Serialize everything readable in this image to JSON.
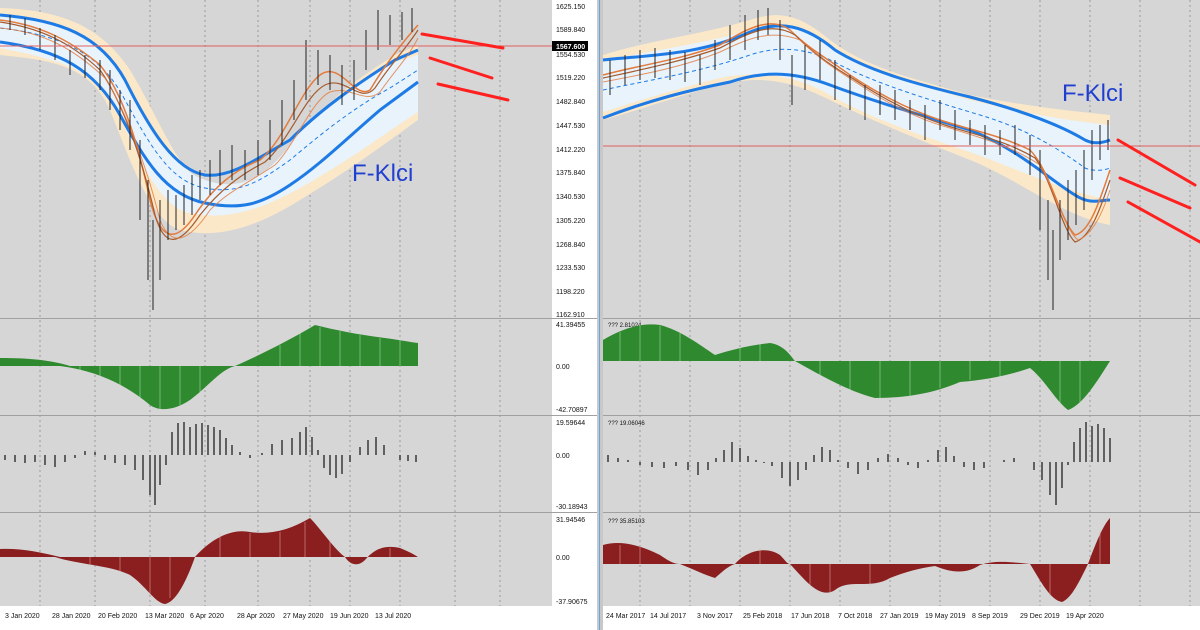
{
  "colors": {
    "background": "#d4d4d4",
    "price_panel": "#ffffff",
    "band_outer": "#fde7c7",
    "band_inner": "#e6f2ff",
    "blue_line": "#1e7be6",
    "ma_orange": "#e27b3d",
    "ma_brown": "#a75b2c",
    "red_arrow": "#ff2b2b",
    "green_hist": "#2f8a2f",
    "black_hist": "#111111",
    "red_hist": "#8b1f1f"
  },
  "left_chart": {
    "symbol_label": "F-Klci",
    "price_axis": [
      "1625.150",
      "1589.840",
      "1567.600",
      "1554.530",
      "1519.220",
      "1482.840",
      "1447.530",
      "1412.220",
      "1375.840",
      "1340.530",
      "1305.220",
      "1268.840",
      "1233.530",
      "1198.220",
      "1162.910"
    ],
    "current_price": "1567.600",
    "x_axis": [
      "3 Jan 2020",
      "28 Jan 2020",
      "20 Feb 2020",
      "13 Mar 2020",
      "6 Apr 2020",
      "28 Apr 2020",
      "27 May 2020",
      "19 Jun 2020",
      "13 Jul 2020"
    ],
    "osc1_axis": [
      "41.39455",
      "0.00",
      "-42.70897"
    ],
    "osc2_axis": [
      "19.59644",
      "0.00",
      "-30.18943"
    ],
    "osc3_axis": [
      "31.94546",
      "0.00",
      "-37.90675"
    ]
  },
  "right_chart": {
    "symbol_label": "F-Klci",
    "x_axis": [
      "24 Mar 2017",
      "14 Jul 2017",
      "3 Nov 2017",
      "25 Feb 2018",
      "17 Jun 2018",
      "7 Oct 2018",
      "27 Jan 2019",
      "19 May 2019",
      "8 Sep 2019",
      "29 Dec 2019",
      "19 Apr 2020"
    ],
    "osc1_header": "??? 2.81024",
    "osc2_header": "??? 19.06046",
    "osc3_header": "??? 35.85103"
  }
}
